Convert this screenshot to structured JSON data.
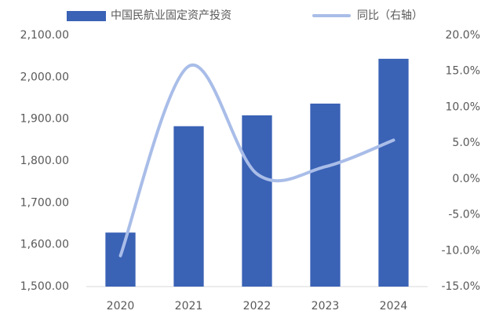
{
  "chart_data": {
    "type": "bar_line",
    "categories": [
      "2020",
      "2021",
      "2022",
      "2023",
      "2024"
    ],
    "series": [
      {
        "name": "中国民航业固定资产投资",
        "type": "bar",
        "color": "#3a62b5",
        "values": [
          1629,
          1883,
          1909,
          1937,
          2044
        ]
      },
      {
        "name": "同比（右轴）",
        "type": "line",
        "axis": "y2",
        "color": "#a9bde8",
        "values": [
          -10.7,
          15.7,
          0.7,
          1.7,
          5.4
        ]
      }
    ],
    "ylim": [
      1500,
      2100
    ],
    "yticks": [
      {
        "value": 1500,
        "label": "1,500.00"
      },
      {
        "value": 1600,
        "label": "1,600.00"
      },
      {
        "value": 1700,
        "label": "1,700.00"
      },
      {
        "value": 1800,
        "label": "1,800.00"
      },
      {
        "value": 1900,
        "label": "1,900.00"
      },
      {
        "value": 2000,
        "label": "2,000.00"
      },
      {
        "value": 2100,
        "label": "2,100.00"
      }
    ],
    "y2lim": [
      -15,
      20
    ],
    "y2ticks": [
      {
        "value": -15,
        "label": "-15.0%"
      },
      {
        "value": -10,
        "label": "-10.0%"
      },
      {
        "value": -5,
        "label": "-5.0%"
      },
      {
        "value": 0,
        "label": "0.0%"
      },
      {
        "value": 5,
        "label": "5.0%"
      },
      {
        "value": 10,
        "label": "10.0%"
      },
      {
        "value": 15,
        "label": "15.0%"
      },
      {
        "value": 20,
        "label": "20.0%"
      }
    ],
    "grid": false
  }
}
